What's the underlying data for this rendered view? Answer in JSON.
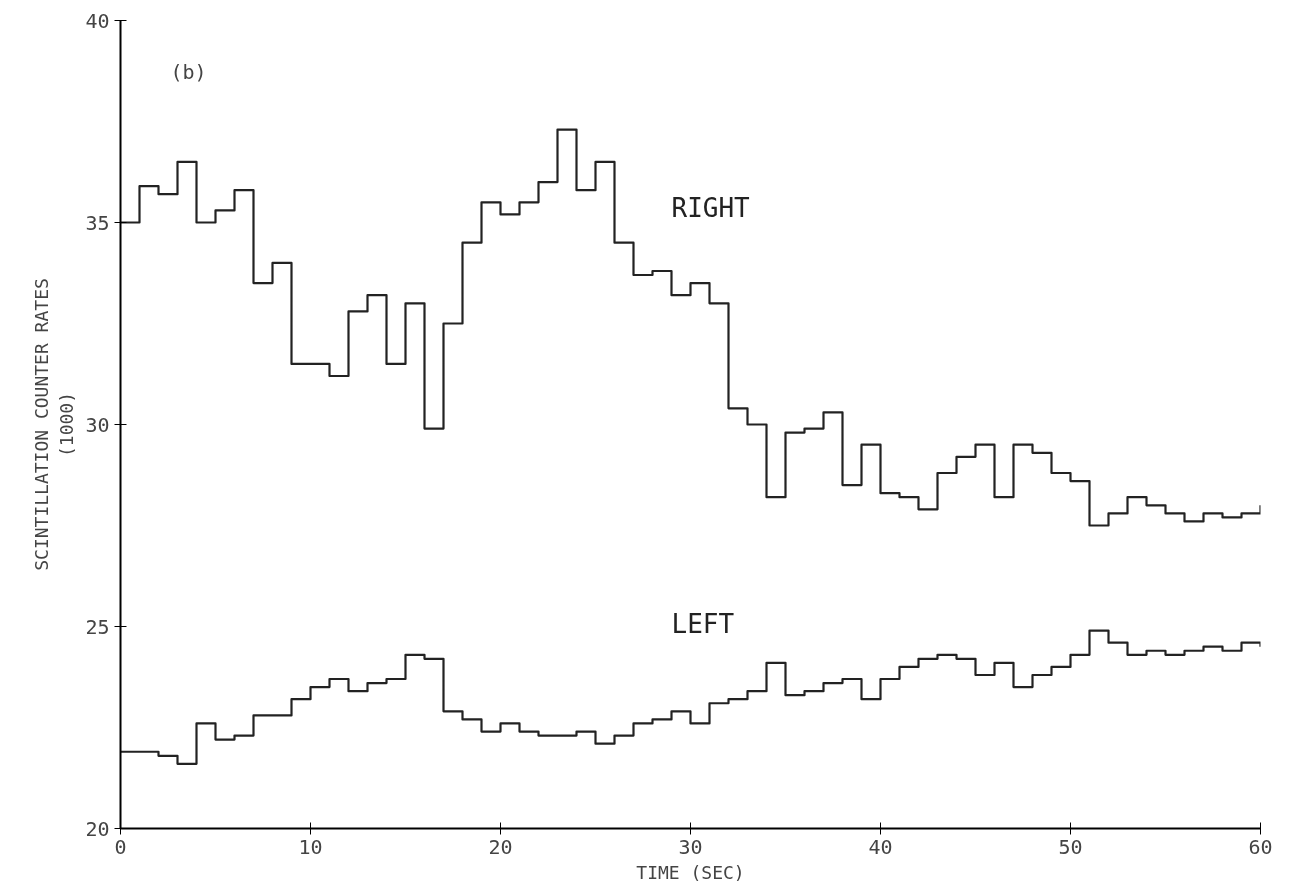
{
  "chart_data": {
    "type": "step",
    "xlabel": "TIME (SEC)",
    "ylabel": "SCINTILLATION COUNTER RATES\n(1000)",
    "annotations": [
      "(b)"
    ],
    "x": [
      0,
      1,
      2,
      3,
      4,
      5,
      6,
      7,
      8,
      9,
      10,
      11,
      12,
      13,
      14,
      15,
      16,
      17,
      18,
      19,
      20,
      21,
      22,
      23,
      24,
      25,
      26,
      27,
      28,
      29,
      30,
      31,
      32,
      33,
      34,
      35,
      36,
      37,
      38,
      39,
      40,
      41,
      42,
      43,
      44,
      45,
      46,
      47,
      48,
      49,
      50,
      51,
      52,
      53,
      54,
      55,
      56,
      57,
      58,
      59,
      60
    ],
    "series": [
      {
        "name": "RIGHT",
        "color": "#222222",
        "values": [
          35.0,
          35.9,
          35.7,
          36.5,
          35.0,
          35.3,
          35.8,
          33.5,
          34.0,
          31.5,
          31.5,
          31.2,
          32.8,
          33.2,
          31.5,
          33.0,
          29.9,
          32.5,
          34.5,
          35.5,
          35.2,
          35.5,
          36.0,
          37.3,
          35.8,
          36.5,
          34.5,
          33.7,
          33.8,
          33.2,
          33.5,
          33.0,
          30.4,
          30.0,
          28.2,
          29.8,
          29.9,
          30.3,
          28.5,
          29.5,
          28.3,
          28.2,
          27.9,
          28.8,
          29.2,
          29.5,
          28.2,
          29.5,
          29.3,
          28.8,
          28.6,
          27.5,
          27.8,
          28.2,
          28.0,
          27.8,
          27.6,
          27.8,
          27.7,
          27.8,
          28.0
        ]
      },
      {
        "name": "LEFT",
        "color": "#222222",
        "values": [
          21.9,
          21.9,
          21.8,
          21.6,
          22.6,
          22.2,
          22.3,
          22.8,
          22.8,
          23.2,
          23.5,
          23.7,
          23.4,
          23.6,
          23.7,
          24.3,
          24.2,
          22.9,
          22.7,
          22.4,
          22.6,
          22.4,
          22.3,
          22.3,
          22.4,
          22.1,
          22.3,
          22.6,
          22.7,
          22.9,
          22.6,
          23.1,
          23.2,
          23.4,
          24.1,
          23.3,
          23.4,
          23.6,
          23.7,
          23.2,
          23.7,
          24.0,
          24.2,
          24.3,
          24.2,
          23.8,
          24.1,
          23.5,
          23.8,
          24.0,
          24.3,
          24.9,
          24.6,
          24.3,
          24.4,
          24.3,
          24.4,
          24.5,
          24.4,
          24.6,
          24.5
        ]
      }
    ],
    "xlim": [
      0,
      60
    ],
    "ylim": [
      20,
      40
    ],
    "xticks": [
      0,
      10,
      20,
      30,
      40,
      50,
      60
    ],
    "yticks": [
      20,
      25,
      30,
      35,
      40
    ],
    "grid": false,
    "line_style": "solid"
  }
}
